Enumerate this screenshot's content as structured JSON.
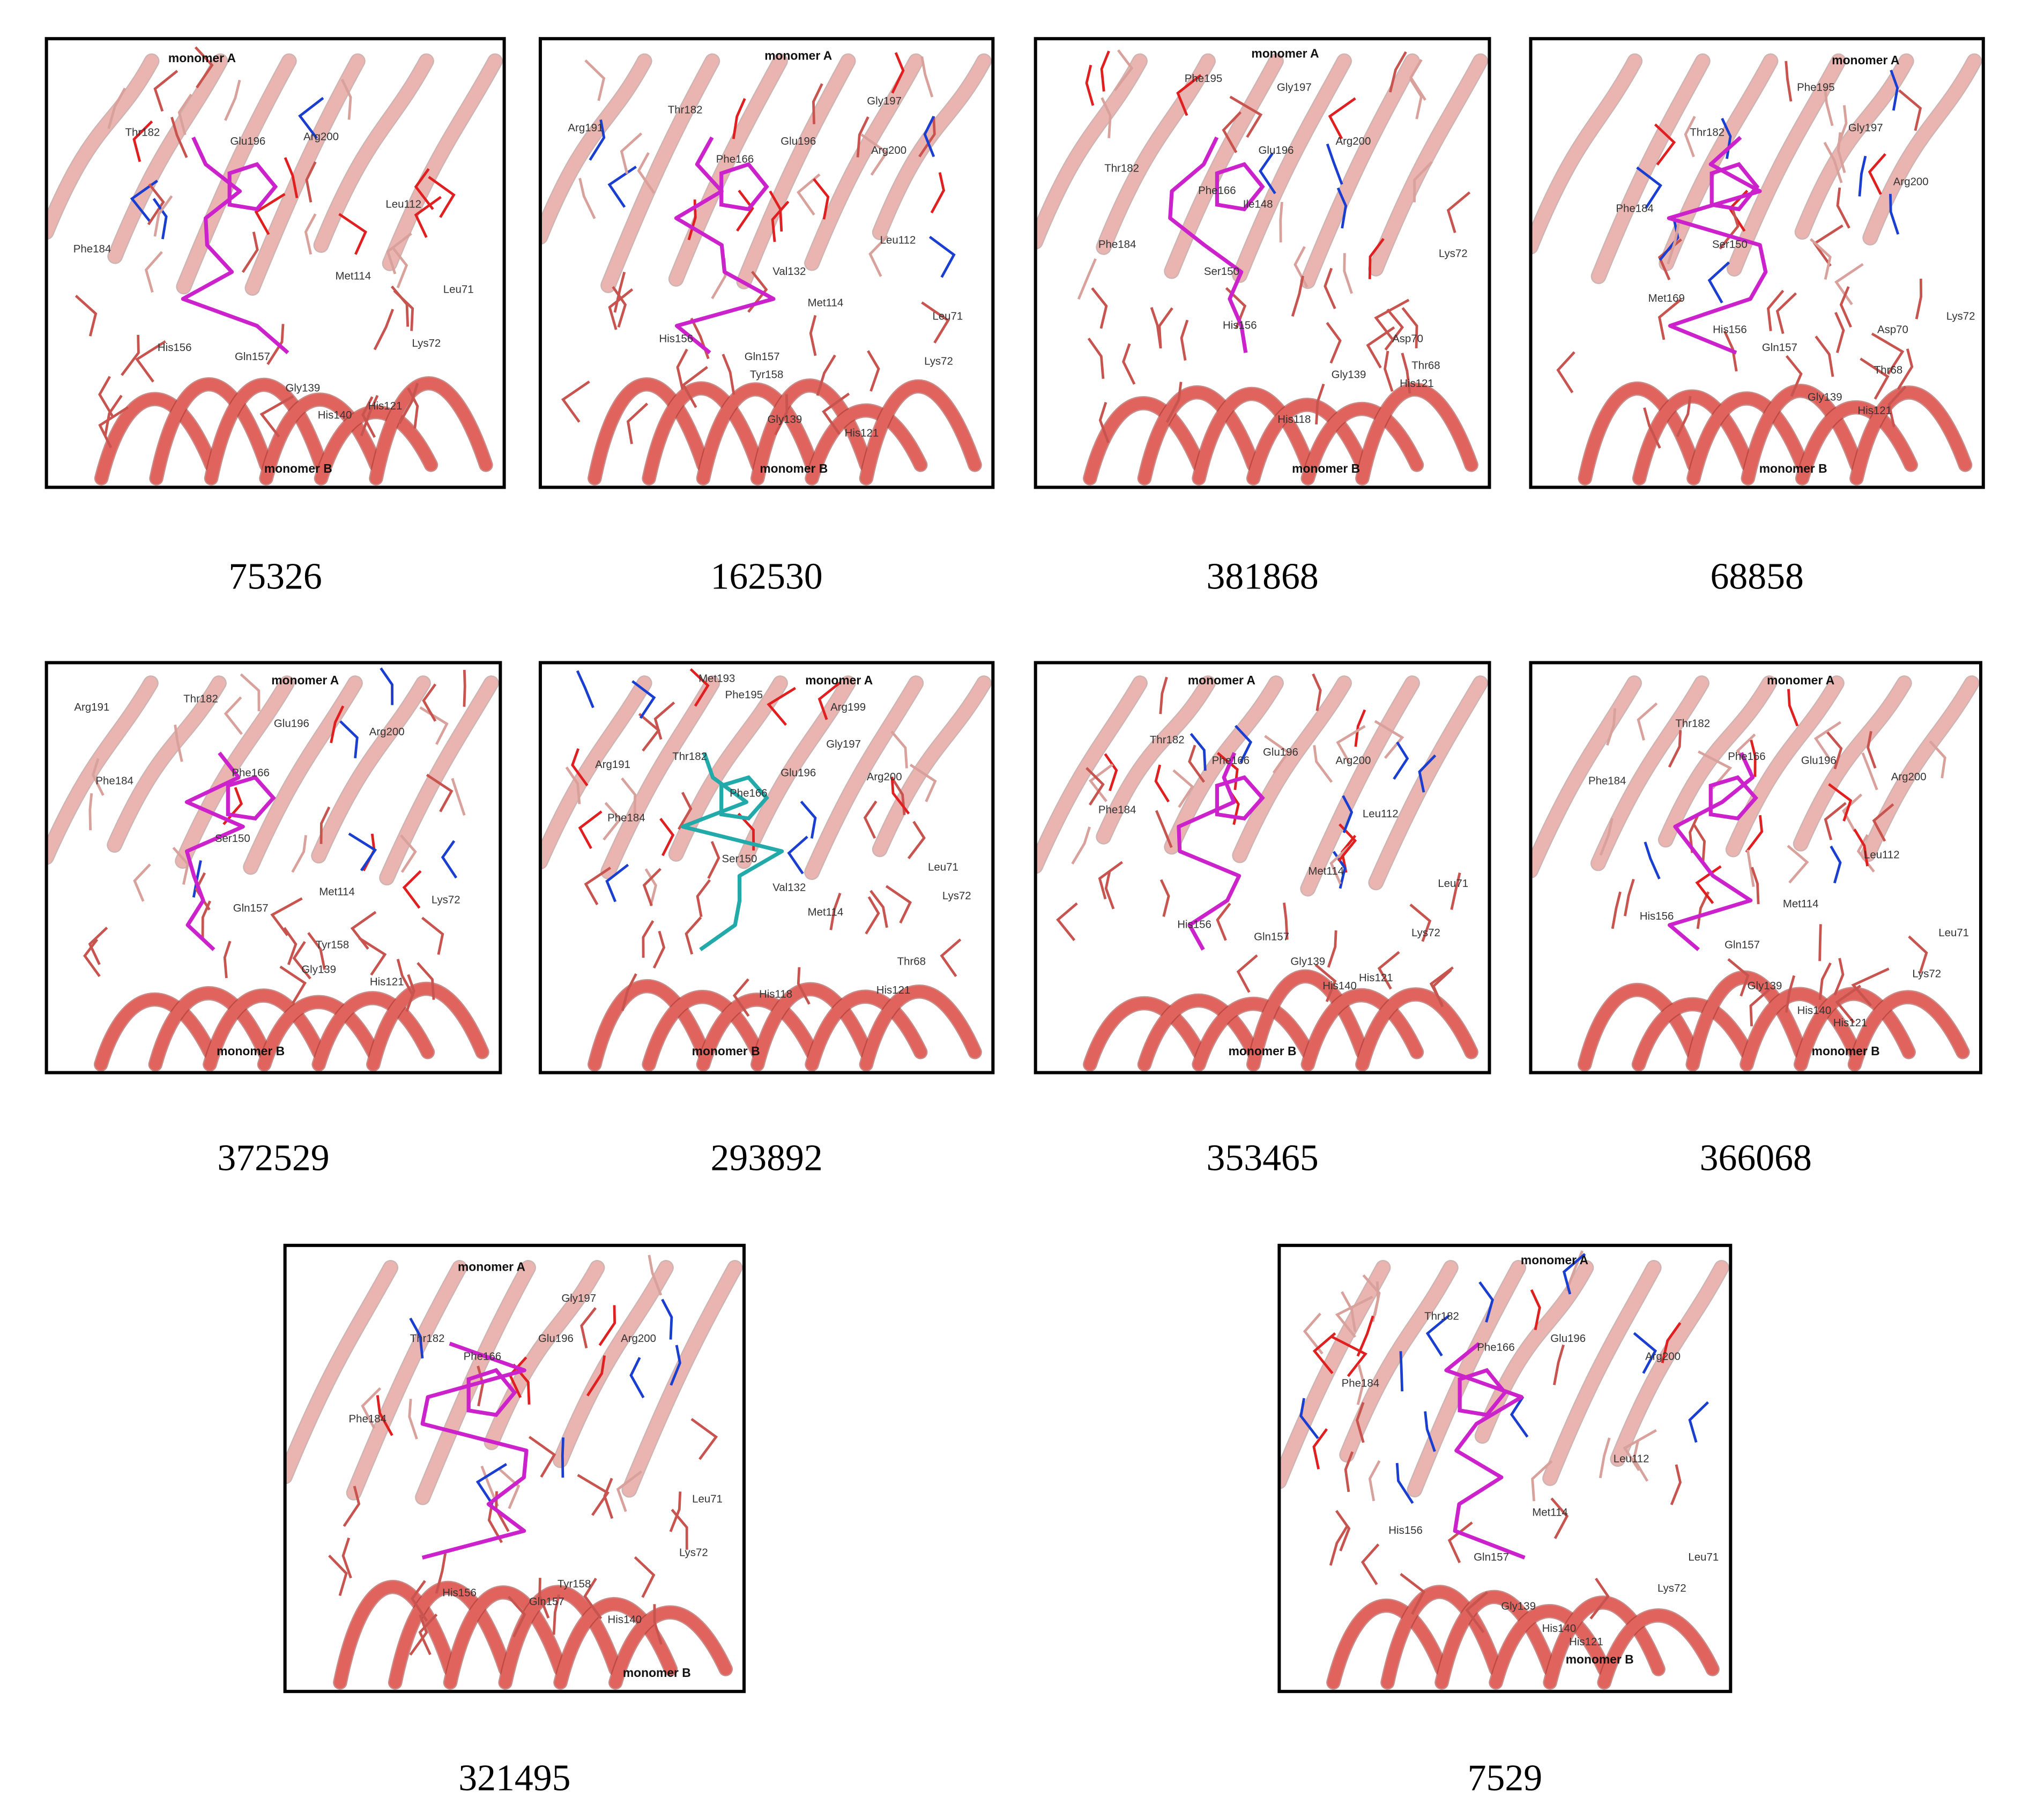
{
  "panels": [
    {
      "id": "75326",
      "monomer_a": "monomer A",
      "monomer_b": "monomer B",
      "ligand_color": "#cc22cc",
      "residues": [
        "Thr182",
        "Glu196",
        "Arg200",
        "Leu112",
        "Phe184",
        "Met114",
        "Leu71",
        "Lys72",
        "His156",
        "Gln157",
        "Gly139",
        "His140",
        "His121"
      ]
    },
    {
      "id": "162530",
      "monomer_a": "monomer A",
      "monomer_b": "monomer B",
      "ligand_color": "#cc22cc",
      "residues": [
        "Arg191",
        "Thr182",
        "Phe166",
        "Glu196",
        "Gly197",
        "Arg200",
        "Leu112",
        "Val132",
        "Met114",
        "Leu71",
        "Lys72",
        "His156",
        "Gln157",
        "Tyr158",
        "Gly139",
        "His121"
      ]
    },
    {
      "id": "381868",
      "monomer_a": "monomer A",
      "monomer_b": "monomer B",
      "ligand_color": "#cc22cc",
      "residues": [
        "Phe195",
        "Gly197",
        "Arg200",
        "Thr182",
        "Glu196",
        "Phe166",
        "Ile148",
        "Phe184",
        "Ser150",
        "Lys72",
        "Asp70",
        "Thr68",
        "His121",
        "Gly139",
        "His118",
        "His156"
      ]
    },
    {
      "id": "68858",
      "monomer_a": "monomer A",
      "monomer_b": "monomer B",
      "ligand_color": "#cc22cc",
      "residues": [
        "Phe195",
        "Gly197",
        "Arg200",
        "Thr182",
        "Phe184",
        "Ser150",
        "Met169",
        "Gln157",
        "His156",
        "Asp70",
        "Lys72",
        "Thr68",
        "Gly139",
        "His121"
      ]
    },
    {
      "id": "372529",
      "monomer_a": "monomer A",
      "monomer_b": "monomer B",
      "ligand_color": "#cc22cc",
      "residues": [
        "Arg191",
        "Thr182",
        "Glu196",
        "Arg200",
        "Phe184",
        "Phe166",
        "Ser150",
        "Met114",
        "Gln157",
        "Tyr158",
        "Gly139",
        "His121",
        "Lys72"
      ]
    },
    {
      "id": "293892",
      "monomer_a": "monomer A",
      "monomer_b": "monomer B",
      "ligand_color": "#22aaaa",
      "residues": [
        "Met193",
        "Phe195",
        "Arg199",
        "Gly197",
        "Arg200",
        "Arg191",
        "Thr182",
        "Glu196",
        "Phe166",
        "Phe184",
        "Ser150",
        "Val132",
        "Met114",
        "Leu71",
        "Lys72",
        "Thr68",
        "His121",
        "His118"
      ]
    },
    {
      "id": "353465",
      "monomer_a": "monomer A",
      "monomer_b": "monomer B",
      "ligand_color": "#cc22cc",
      "residues": [
        "Thr182",
        "Phe166",
        "Glu196",
        "Arg200",
        "Leu112",
        "Phe184",
        "Met114",
        "Leu71",
        "Lys72",
        "His156",
        "Gln157",
        "Gly139",
        "His140",
        "His121"
      ]
    },
    {
      "id": "366068",
      "monomer_a": "monomer A",
      "monomer_b": "monomer B",
      "ligand_color": "#cc22cc",
      "residues": [
        "Thr182",
        "Phe166",
        "Glu196",
        "Arg200",
        "Phe184",
        "Leu112",
        "Met114",
        "His156",
        "Gln157",
        "Leu71",
        "Lys72",
        "Gly139",
        "His140",
        "His121"
      ]
    },
    {
      "id": "321495",
      "monomer_a": "monomer A",
      "monomer_b": "monomer B",
      "ligand_color": "#cc22cc",
      "residues": [
        "Thr182",
        "Phe166",
        "Glu196",
        "Gly197",
        "Arg200",
        "Phe184",
        "Leu71",
        "Lys72",
        "His156",
        "Gln157",
        "Tyr158",
        "His140"
      ]
    },
    {
      "id": "7529",
      "monomer_a": "monomer A",
      "monomer_b": "monomer B",
      "ligand_color": "#cc22cc",
      "residues": [
        "Thr182",
        "Phe166",
        "Glu196",
        "Arg200",
        "Phe184",
        "Leu112",
        "Met114",
        "His156",
        "Gln157",
        "Leu71",
        "Lys72",
        "Gly139",
        "His140",
        "His121"
      ]
    }
  ]
}
